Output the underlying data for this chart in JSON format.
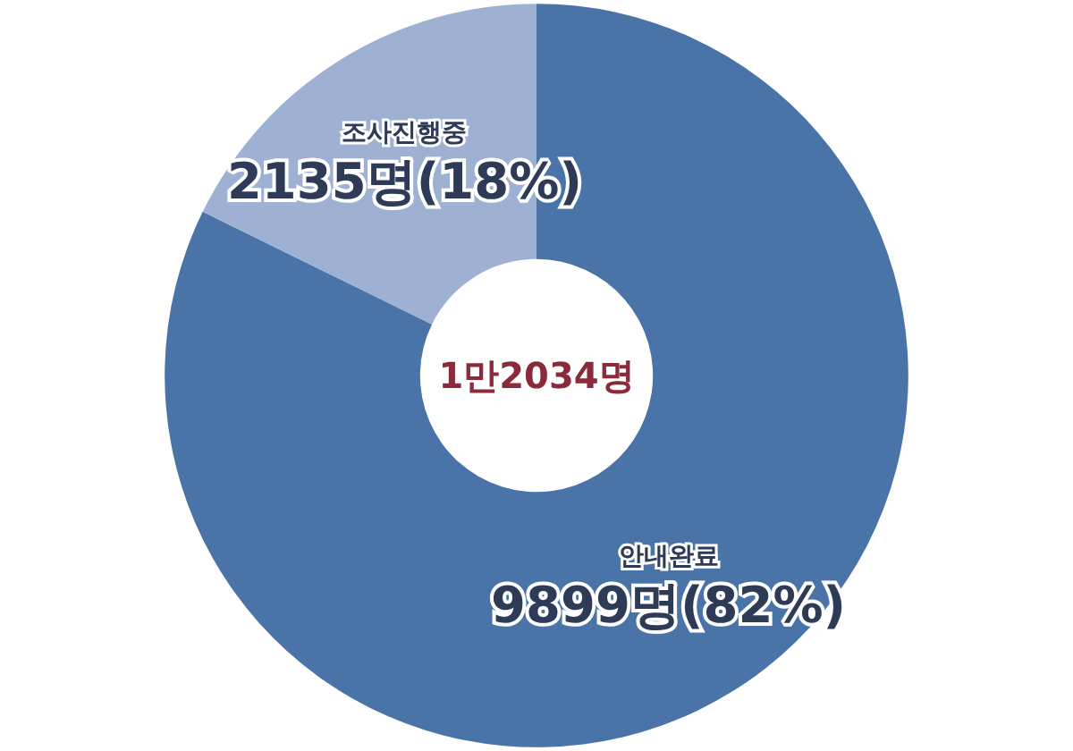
{
  "chart_data": {
    "type": "donut",
    "categories": [
      "안내완료",
      "조사진행중"
    ],
    "values": [
      9899,
      2135
    ],
    "colors": [
      "#4a74a8",
      "#9eb1d3"
    ],
    "value_labels": [
      "9899명(82%)",
      "2135명(18%)"
    ],
    "annotations": [
      "1만2034명"
    ]
  }
}
